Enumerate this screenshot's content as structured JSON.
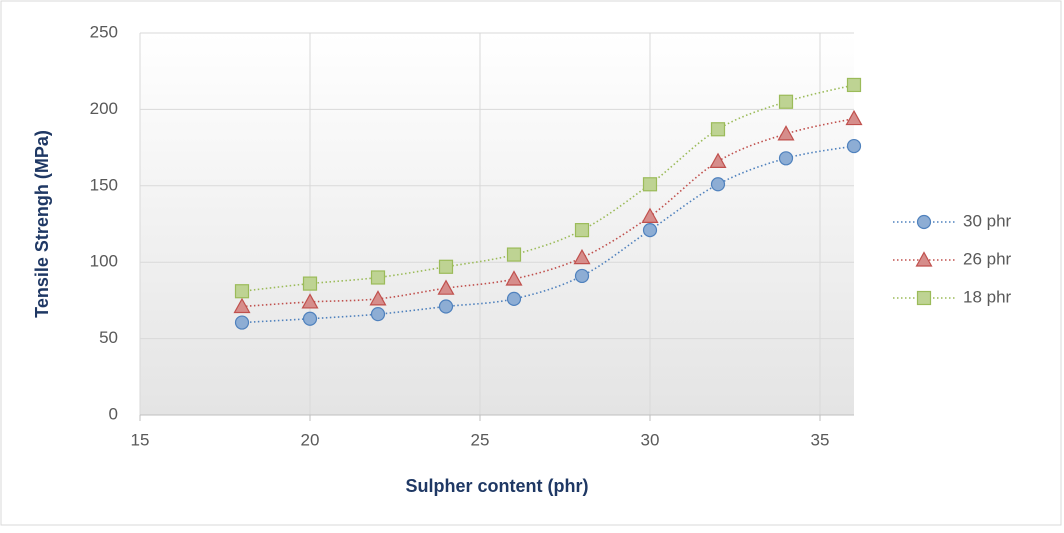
{
  "chart_data": {
    "type": "scatter",
    "x_label": "Sulpher content (phr)",
    "y_label": "Tensile Strengh (MPa)",
    "x": [
      18,
      20,
      22,
      24,
      26,
      28,
      30,
      32,
      34,
      36
    ],
    "series": [
      {
        "name": "30 phr",
        "color": "#4f81bd",
        "marker": "circle",
        "values": [
          60.5,
          63,
          66,
          71,
          76,
          91,
          121,
          151,
          168,
          176
        ]
      },
      {
        "name": "26 phr",
        "color": "#c0504d",
        "marker": "triangle",
        "values": [
          71,
          74,
          76,
          83,
          89,
          103,
          130,
          166,
          184,
          194
        ]
      },
      {
        "name": "18 phr",
        "color": "#9bbb59",
        "marker": "square",
        "values": [
          81,
          86,
          90,
          97,
          105,
          121,
          151,
          187,
          205,
          216
        ]
      }
    ],
    "xlim": [
      15,
      36
    ],
    "xticks": [
      15,
      20,
      25,
      30,
      35
    ],
    "ylim": [
      0,
      250
    ],
    "yticks": [
      0,
      50,
      100,
      150,
      200,
      250
    ],
    "grid": true,
    "legend": "right"
  }
}
